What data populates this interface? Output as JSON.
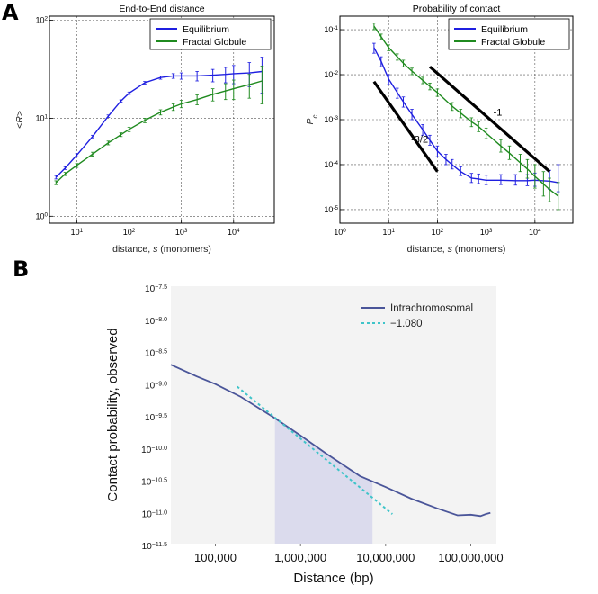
{
  "panels": {
    "a": {
      "letter": "A"
    },
    "b": {
      "letter": "B"
    }
  },
  "chart_data": [
    {
      "id": "end-to-end",
      "type": "line",
      "title": "End-to-End distance",
      "xlabel_main": "distance, ",
      "xlabel_var": "s",
      "xlabel_unit": " (monomers)",
      "ylabel": "<R>",
      "x_scale": "log",
      "y_scale": "log",
      "xlim": [
        3,
        60000
      ],
      "ylim": [
        0.85,
        110
      ],
      "x_ticks": [
        {
          "value": 10,
          "base": "10",
          "exp": "1"
        },
        {
          "value": 100,
          "base": "10",
          "exp": "2"
        },
        {
          "value": 1000,
          "base": "10",
          "exp": "3"
        },
        {
          "value": 10000,
          "base": "10",
          "exp": "4"
        }
      ],
      "y_ticks": [
        {
          "value": 1,
          "base": "10",
          "exp": "0"
        },
        {
          "value": 10,
          "base": "10",
          "exp": "1"
        },
        {
          "value": 100,
          "base": "10",
          "exp": "2"
        }
      ],
      "grid": true,
      "legend_position": "top-right",
      "series": [
        {
          "name": "Equilibrium",
          "color": "#1f1fe0",
          "x": [
            4,
            6,
            10,
            20,
            40,
            70,
            100,
            200,
            400,
            700,
            1000,
            2000,
            4000,
            7000,
            10000,
            20000,
            35000
          ],
          "y": [
            2.5,
            3.1,
            4.2,
            6.5,
            10.5,
            15,
            18,
            23,
            26,
            27,
            27,
            27,
            27.5,
            28,
            28.5,
            29,
            30
          ],
          "err": [
            0.1,
            0.1,
            0.15,
            0.2,
            0.3,
            0.4,
            0.5,
            0.7,
            1,
            1.5,
            2,
            3,
            4,
            5,
            6,
            8,
            12
          ]
        },
        {
          "name": "Fractal Globule",
          "color": "#1f8a1f",
          "x": [
            4,
            6,
            10,
            20,
            40,
            70,
            100,
            200,
            400,
            700,
            1000,
            2000,
            4000,
            7000,
            10000,
            20000,
            35000
          ],
          "y": [
            2.2,
            2.7,
            3.3,
            4.3,
            5.6,
            6.8,
            7.7,
            9.5,
            11.5,
            13,
            14,
            15.5,
            17.5,
            19,
            20,
            22,
            24
          ],
          "err": [
            0.1,
            0.1,
            0.15,
            0.2,
            0.25,
            0.3,
            0.4,
            0.5,
            0.7,
            1,
            1.2,
            1.8,
            2.5,
            3.5,
            4.5,
            6,
            10
          ]
        }
      ]
    },
    {
      "id": "prob-contact",
      "type": "line",
      "title": "Probability of contact",
      "xlabel_main": "distance, ",
      "xlabel_var": "s",
      "xlabel_unit": " (monomers)",
      "ylabel": "P",
      "ylabel_sub": "c",
      "x_scale": "log",
      "y_scale": "log",
      "xlim": [
        1,
        60000
      ],
      "ylim": [
        5e-06,
        0.2
      ],
      "x_ticks": [
        {
          "value": 1,
          "base": "10",
          "exp": "0"
        },
        {
          "value": 10,
          "base": "10",
          "exp": "1"
        },
        {
          "value": 100,
          "base": "10",
          "exp": "2"
        },
        {
          "value": 1000,
          "base": "10",
          "exp": "3"
        },
        {
          "value": 10000,
          "base": "10",
          "exp": "4"
        }
      ],
      "y_ticks": [
        {
          "value": 0.1,
          "base": "10",
          "exp": "-1"
        },
        {
          "value": 0.01,
          "base": "10",
          "exp": "-2"
        },
        {
          "value": 0.001,
          "base": "10",
          "exp": "-3"
        },
        {
          "value": 0.0001,
          "base": "10",
          "exp": "-4"
        },
        {
          "value": 1e-05,
          "base": "10",
          "exp": "-5"
        }
      ],
      "grid": true,
      "legend_position": "top-right",
      "series": [
        {
          "name": "Equilibrium",
          "color": "#1f1fe0",
          "x": [
            5,
            7,
            10,
            15,
            20,
            30,
            50,
            70,
            100,
            150,
            200,
            300,
            500,
            700,
            1000,
            2000,
            4000,
            7000,
            10000,
            20000,
            30000
          ],
          "y": [
            0.04,
            0.02,
            0.008,
            0.004,
            0.0025,
            0.0013,
            0.0006,
            0.00035,
            0.0002,
            0.00013,
            0.0001,
            7e-05,
            5e-05,
            4.8e-05,
            4.5e-05,
            4.5e-05,
            4.4e-05,
            4.4e-05,
            4.5e-05,
            4.3e-05,
            4e-05
          ],
          "err_lo": [
            0.03,
            0.015,
            0.006,
            0.003,
            0.0019,
            0.001,
            0.00045,
            0.00027,
            0.00015,
            0.0001,
            8e-05,
            5.7e-05,
            4e-05,
            3.8e-05,
            3.6e-05,
            3.6e-05,
            3.5e-05,
            3.4e-05,
            3.3e-05,
            2.8e-05,
            2.5e-05
          ],
          "err_hi": [
            0.05,
            0.025,
            0.01,
            0.005,
            0.0032,
            0.0017,
            0.00078,
            0.00045,
            0.00026,
            0.00017,
            0.00013,
            9e-05,
            6.4e-05,
            6.2e-05,
            5.8e-05,
            6e-05,
            6e-05,
            6e-05,
            6.5e-05,
            7.5e-05,
            0.0001
          ]
        },
        {
          "name": "Fractal Globule",
          "color": "#1f8a1f",
          "x": [
            5,
            7,
            10,
            15,
            20,
            30,
            50,
            70,
            100,
            200,
            300,
            500,
            700,
            1000,
            2000,
            3000,
            5000,
            7000,
            10000,
            15000,
            20000,
            30000
          ],
          "y": [
            0.12,
            0.07,
            0.04,
            0.025,
            0.018,
            0.012,
            0.0075,
            0.0055,
            0.004,
            0.002,
            0.0014,
            0.0009,
            0.0007,
            0.0005,
            0.00026,
            0.00018,
            0.00011,
            8e-05,
            5.5e-05,
            3.7e-05,
            2.8e-05,
            2e-05
          ],
          "err_lo": [
            0.1,
            0.06,
            0.034,
            0.021,
            0.015,
            0.01,
            0.0063,
            0.0046,
            0.0033,
            0.0016,
            0.0011,
            0.0007,
            0.00054,
            0.00038,
            0.00019,
            0.00013,
            7e-05,
            5e-05,
            3e-05,
            2e-05,
            1.5e-05,
            1e-05
          ],
          "err_hi": [
            0.14,
            0.08,
            0.046,
            0.029,
            0.021,
            0.014,
            0.0088,
            0.0065,
            0.0048,
            0.0024,
            0.0017,
            0.0011,
            0.0009,
            0.00065,
            0.00036,
            0.00026,
            0.00017,
            0.00013,
            0.0001,
            7e-05,
            5e-05,
            4e-05
          ]
        }
      ],
      "reference_lines": [
        {
          "label": "-1",
          "x_start": 70,
          "y_start": 0.015,
          "x_end": 20000,
          "y_end": 7e-05
        },
        {
          "label": "-3/2",
          "x_start": 5,
          "y_start": 0.007,
          "x_end": 100,
          "y_end": 7e-05
        }
      ]
    },
    {
      "id": "hic-contact",
      "type": "line",
      "title": "",
      "xlabel": "Distance (bp)",
      "ylabel": "Contact probability, observed",
      "x_scale": "log",
      "y_scale": "log",
      "xlim": [
        30000,
        200000000
      ],
      "ylim_log10": [
        -11.5,
        -7.5
      ],
      "x_ticks": [
        {
          "value": 100000,
          "label": "100,000"
        },
        {
          "value": 1000000,
          "label": "1,000,000"
        },
        {
          "value": 10000000,
          "label": "10,000,000"
        },
        {
          "value": 100000000,
          "label": "100,000,000"
        }
      ],
      "y_ticks": [
        {
          "log10": -7.5,
          "base": "10",
          "exp": "−7.5"
        },
        {
          "log10": -8.0,
          "base": "10",
          "exp": "−8.0"
        },
        {
          "log10": -8.5,
          "base": "10",
          "exp": "−8.5"
        },
        {
          "log10": -9.0,
          "base": "10",
          "exp": "−9.0"
        },
        {
          "log10": -9.5,
          "base": "10",
          "exp": "−9.5"
        },
        {
          "log10": -10.0,
          "base": "10",
          "exp": "−10.0"
        },
        {
          "log10": -10.5,
          "base": "10",
          "exp": "−10.5"
        },
        {
          "log10": -11.0,
          "base": "10",
          "exp": "−11.0"
        },
        {
          "log10": -11.5,
          "base": "10",
          "exp": "−11.5"
        }
      ],
      "grid": false,
      "legend_position": "top-right",
      "shaded_region": {
        "x_start": 500000,
        "x_end": 7000000,
        "color": "#d8d8ec"
      },
      "series": [
        {
          "name": "Intrachromosomal",
          "color": "#4a5599",
          "style": "solid",
          "x": [
            30000,
            60000,
            100000,
            200000,
            500000,
            1000000,
            2000000,
            5000000,
            10000000,
            20000000,
            40000000,
            70000000,
            100000000,
            130000000,
            150000000,
            170000000
          ],
          "log10_y": [
            -8.72,
            -8.9,
            -9.02,
            -9.22,
            -9.55,
            -9.82,
            -10.1,
            -10.45,
            -10.62,
            -10.8,
            -10.95,
            -11.06,
            -11.05,
            -11.07,
            -11.04,
            -11.02
          ]
        },
        {
          "name": "−1.080",
          "color": "#3fc4c9",
          "style": "dashed",
          "x": [
            180000,
            12000000
          ],
          "log10_y": [
            -9.06,
            -11.04
          ]
        }
      ]
    }
  ]
}
